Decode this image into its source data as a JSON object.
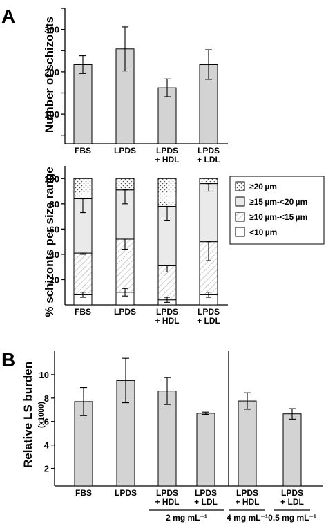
{
  "panels": {
    "a": {
      "letter": "A",
      "top_ylabel": "Number of schizonts",
      "bottom_ylabel": "% schizonts per size range"
    },
    "b": {
      "letter": "B",
      "ylabel": "Relative LS burden",
      "ylabel_sub": "(x1000)"
    }
  },
  "colors": {
    "bar_fill": "#d3d3d3",
    "axis": "#000000"
  },
  "chart_data": [
    {
      "id": "A-top",
      "type": "bar",
      "categories": [
        "FBS",
        "LPDS",
        "LPDS\n+ HDL",
        "LPDS\n+ LDL"
      ],
      "values": [
        217,
        254,
        162,
        217
      ],
      "errors": [
        21,
        52,
        21,
        35
      ],
      "ylabel": "Number of schizonts",
      "ylim": [
        30,
        350
      ],
      "yticks": [
        100,
        200,
        300
      ],
      "minor_yticks": [
        50,
        150,
        250,
        350
      ],
      "grid": false
    },
    {
      "id": "A-bottom",
      "type": "stacked_bar",
      "categories": [
        "FBS",
        "LPDS",
        "LPDS\n+ HDL",
        "LPDS\n+ LDL"
      ],
      "series": [
        {
          "name": "<10 µm",
          "legend_label": "<10 µm",
          "pattern": "white",
          "values": [
            8,
            10,
            4,
            8
          ],
          "errors": [
            2,
            3,
            2,
            2
          ]
        },
        {
          "name": "≥10 µm-<15 µm",
          "legend_label": "≥10 µm-<15 µm",
          "pattern": "hatch",
          "values": [
            33,
            42,
            27,
            42
          ],
          "errors": [
            1,
            8,
            5,
            15
          ]
        },
        {
          "name": "≥15 µm-<20 µm",
          "legend_label": "≥15 µm-<20 µm",
          "pattern": "lightgray",
          "values": [
            43,
            39,
            47,
            46
          ],
          "errors": [
            11,
            11,
            11,
            6
          ]
        },
        {
          "name": "≥20 µm",
          "legend_label": "≥20 µm",
          "pattern": "dots",
          "values": [
            16,
            9,
            22,
            4
          ],
          "errors": [
            0,
            0,
            0,
            0
          ]
        }
      ],
      "ylabel": "% schizonts per size range",
      "ylim": [
        0,
        110
      ],
      "yticks": [
        20,
        40,
        60,
        80,
        100
      ],
      "grid": false,
      "legend_position": "right"
    },
    {
      "id": "B",
      "type": "bar",
      "categories": [
        "FBS",
        "LPDS",
        "LPDS\n+ HDL",
        "LPDS\n+ LDL",
        "LPDS\n+ HDL",
        "LPDS\n+ LDL"
      ],
      "values": [
        7.7,
        9.5,
        8.6,
        6.7,
        7.75,
        6.65
      ],
      "errors": [
        1.2,
        1.9,
        1.15,
        0.1,
        0.7,
        0.45
      ],
      "ylabel": "Relative LS burden",
      "ylabel_sub": "(x1000)",
      "ylim": [
        0.5,
        12
      ],
      "yticks": [
        2,
        4,
        6,
        8,
        10
      ],
      "grid": false,
      "concentration_labels": [
        {
          "text": "2 mg mL⁻¹",
          "categories": [
            2,
            3
          ]
        },
        {
          "text": "4 mg mL⁻¹",
          "categories": [
            4
          ]
        },
        {
          "text": "0.5 mg mL⁻¹",
          "categories": [
            5
          ]
        }
      ]
    }
  ]
}
